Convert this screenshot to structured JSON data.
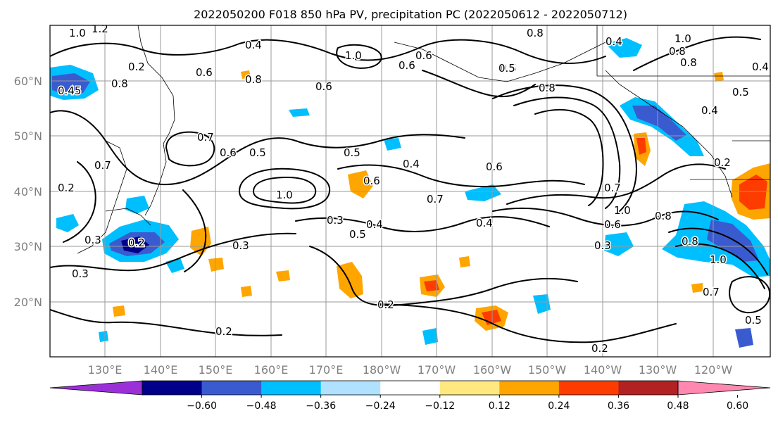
{
  "title": "2022050200 F018 850 hPa PV, precipitation PC (2022050612 - 2022050712)",
  "lat_ticks": [
    "60°N",
    "50°N",
    "40°N",
    "30°N",
    "20°N"
  ],
  "lon_ticks": [
    "130°E",
    "140°E",
    "150°E",
    "160°E",
    "170°E",
    "180°W",
    "170°W",
    "160°W",
    "150°W",
    "140°W",
    "130°W",
    "120°W"
  ],
  "colorbar": {
    "boundaries": [
      "−0.60",
      "−0.48",
      "−0.36",
      "−0.24",
      "−0.12",
      "0.12",
      "0.24",
      "0.36",
      "0.48",
      "0.60"
    ],
    "colors": [
      "#9b30d9",
      "#00008b",
      "#3a5bd0",
      "#00bfff",
      "#b0e2ff",
      "#ffffff",
      "#ffe880",
      "#ffa500",
      "#ff3c00",
      "#b22222",
      "#ff88b0"
    ]
  },
  "contour_labels": [
    {
      "text": "1.0"
    },
    {
      "text": "1.2"
    },
    {
      "text": "0.4"
    },
    {
      "text": "0.5"
    },
    {
      "text": "1.0"
    },
    {
      "text": "0.8"
    },
    {
      "text": "0.6"
    },
    {
      "text": "0.8"
    },
    {
      "text": "0.6"
    },
    {
      "text": "0.5"
    },
    {
      "text": "0.4"
    },
    {
      "text": "0.6"
    },
    {
      "text": "1.0"
    },
    {
      "text": "0.7"
    },
    {
      "text": "0.3"
    },
    {
      "text": "0.4"
    },
    {
      "text": "0.5"
    },
    {
      "text": "0.3"
    },
    {
      "text": "0.3"
    },
    {
      "text": "0.2"
    },
    {
      "text": "0.2"
    },
    {
      "text": "0.2"
    },
    {
      "text": "0.2"
    },
    {
      "text": "0.4"
    },
    {
      "text": "0.6"
    },
    {
      "text": "0.8"
    },
    {
      "text": "1.0"
    },
    {
      "text": "0.7"
    },
    {
      "text": "0.3"
    },
    {
      "text": "0.8"
    },
    {
      "text": "1.0"
    },
    {
      "text": "0.7"
    },
    {
      "text": "1.0"
    },
    {
      "text": "0.5"
    },
    {
      "text": "0.45"
    },
    {
      "text": "0.8"
    },
    {
      "text": "0.6"
    },
    {
      "text": "0.5"
    },
    {
      "text": "0.4"
    },
    {
      "text": "0.6"
    },
    {
      "text": "0.3"
    },
    {
      "text": "0.5"
    },
    {
      "text": "0.6"
    },
    {
      "text": "0.8"
    },
    {
      "text": "0.8"
    },
    {
      "text": "0.7"
    },
    {
      "text": "0.5"
    },
    {
      "text": "0.4"
    },
    {
      "text": "0.2"
    },
    {
      "text": "0.2"
    },
    {
      "text": "0.2"
    },
    {
      "text": "0.7"
    },
    {
      "text": "0.6"
    },
    {
      "text": "0.8"
    },
    {
      "text": "0.4"
    }
  ]
}
